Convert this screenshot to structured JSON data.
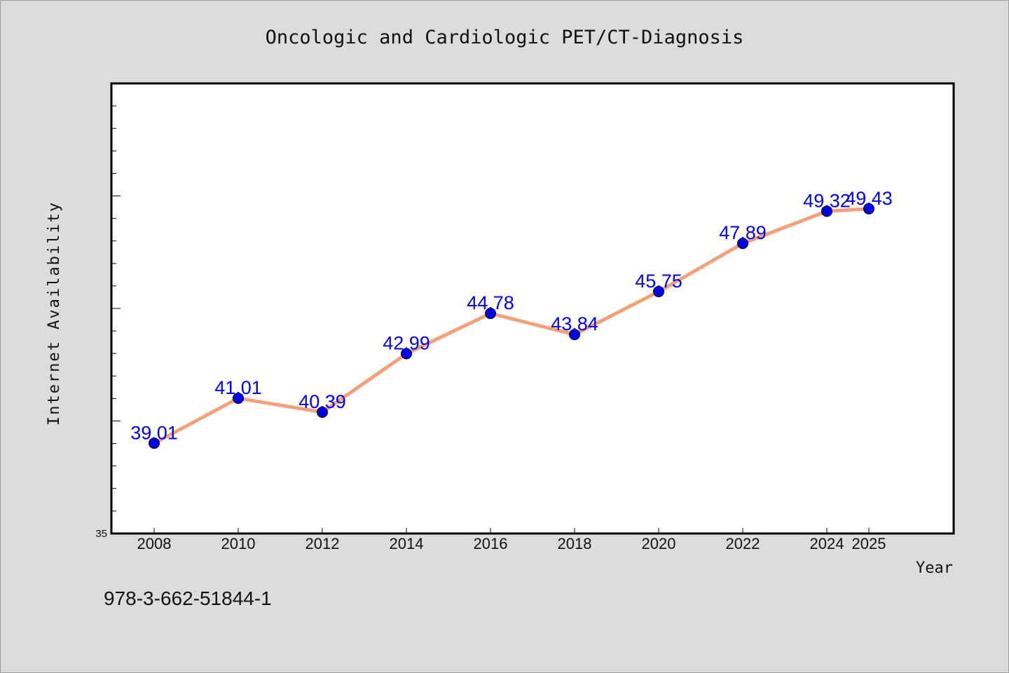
{
  "chart_data": {
    "type": "line",
    "title": "Oncologic and Cardiologic PET/CT-Diagnosis",
    "xlabel": "Year",
    "ylabel": "Internet Availability",
    "categories": [
      "2008",
      "2010",
      "2012",
      "2014",
      "2016",
      "2018",
      "2020",
      "2022",
      "2024",
      "2025"
    ],
    "series": [
      {
        "values": [
          39.01,
          41.01,
          40.39,
          42.99,
          44.78,
          43.84,
          45.75,
          47.89,
          49.32,
          49.43
        ]
      }
    ],
    "data_labels": [
      "39.01",
      "41.01",
      "40.39",
      "42.99",
      "44.78",
      "43.84",
      "45.75",
      "47.89",
      "49.32",
      "49.43"
    ],
    "ylim": [
      35,
      55
    ],
    "ytick_labels": [
      "35"
    ],
    "grid": false,
    "line_color": "#f4a07a",
    "marker_color": "#0000ee",
    "label_color": "#0000ee"
  },
  "footer": {
    "isbn": "978-3-662-51844-1"
  }
}
